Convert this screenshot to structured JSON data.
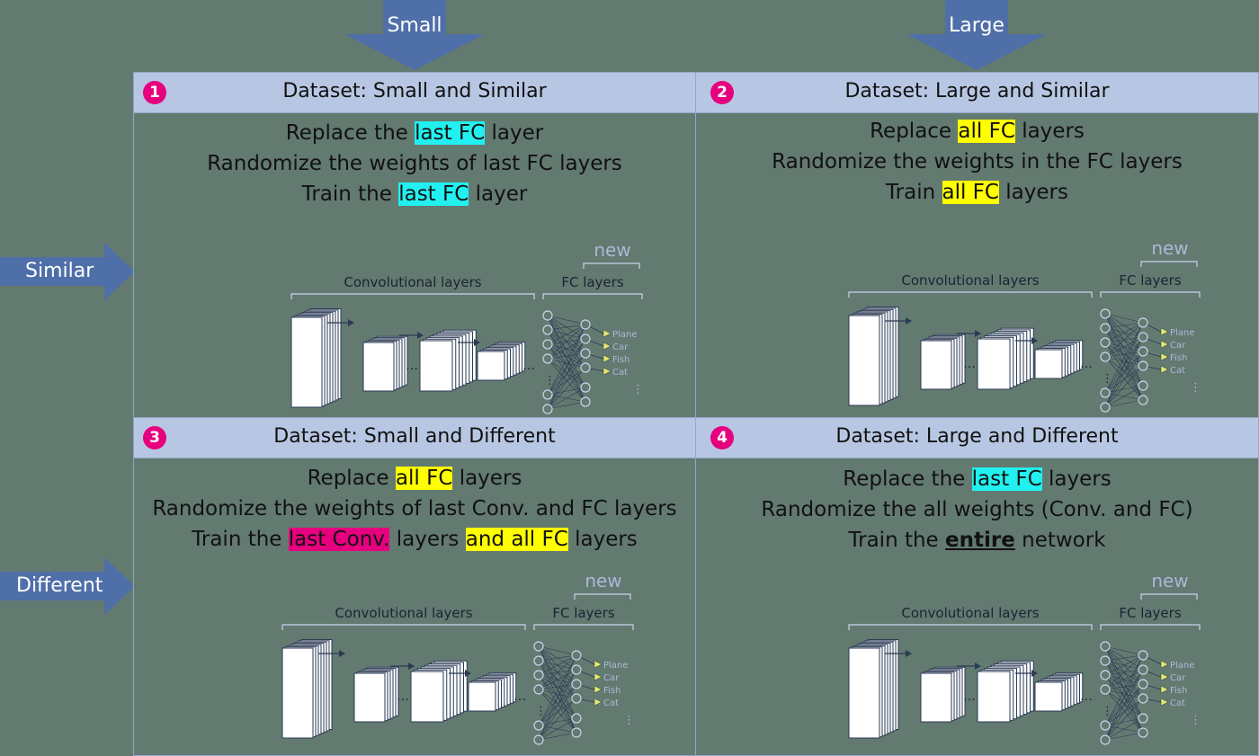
{
  "top_arrows": {
    "small": "Small",
    "large": "Large"
  },
  "side_arrows": {
    "similar": "Similar",
    "different": "Different"
  },
  "quadrants": [
    {
      "number": "1",
      "title": "Dataset: Small and Similar",
      "line1": {
        "pre": "Replace the ",
        "hl": "last FC",
        "post": " layer"
      },
      "line2": {
        "text": "Randomize the weights of last FC layers"
      },
      "line3": {
        "pre": "Train the ",
        "hl": "last FC",
        "post": " layer"
      }
    },
    {
      "number": "2",
      "title": "Dataset: Large and Similar",
      "line1": {
        "pre": "Replace ",
        "hl": "all FC",
        "post": " layers"
      },
      "line2": {
        "text": "Randomize the weights in the FC layers"
      },
      "line3": {
        "pre": "Train ",
        "hl": "all FC",
        "post": " layers"
      }
    },
    {
      "number": "3",
      "title": "Dataset: Small and Different",
      "line1": {
        "pre": "Replace ",
        "hl": "all FC",
        "post": " layers"
      },
      "line2": {
        "text": "Randomize the weights of last Conv. and FC layers"
      },
      "line3": {
        "pre": "Train the ",
        "hl": "last Conv.",
        "mid": " layers ",
        "hl2": "and all FC",
        "post": " layers"
      }
    },
    {
      "number": "4",
      "title": "Dataset: Large and Different",
      "line1": {
        "pre": "Replace the ",
        "hl": "last FC",
        "post": " layers"
      },
      "line2": {
        "text": "Randomize the all weights (Conv. and FC)"
      },
      "line3": {
        "pre": "Train the ",
        "hl": "entire",
        "post": " network"
      }
    }
  ],
  "network": {
    "conv_label": "Convolutional layers",
    "fc_label": "FC layers",
    "new_label": "new",
    "outputs": [
      "Plane",
      "Car",
      "Fish",
      "Cat"
    ],
    "dots": "…",
    "vdots": "⋮"
  },
  "colors": {
    "cyan": "#22f0f0",
    "yellow": "#ffff00",
    "pink": "#e6007e",
    "header": "#b7c7e3",
    "bg": "#637a70",
    "arrow": "#4f6fa8"
  }
}
